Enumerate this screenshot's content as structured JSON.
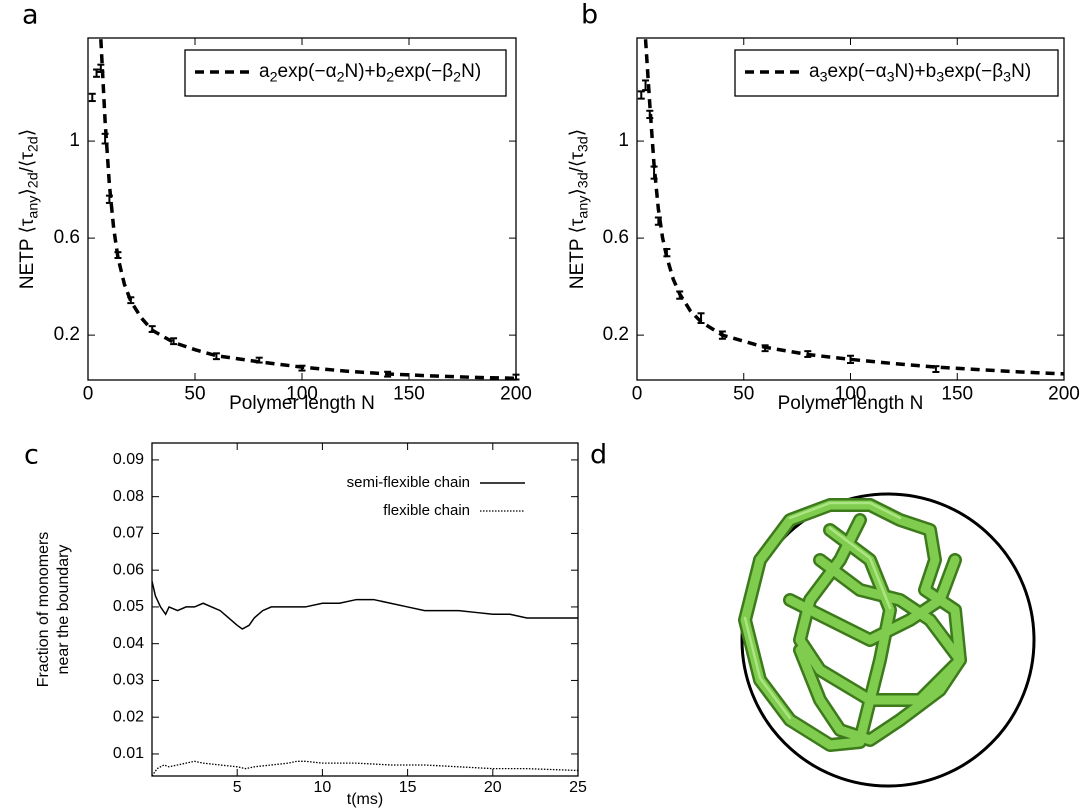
{
  "chart_data": [
    {
      "type": "line",
      "panel_label": "a",
      "xlabel": "Polymer length N",
      "ylabel": [
        "NETP ⟨τ",
        "any",
        "⟩",
        "2d",
        "/⟨τ",
        "2d",
        "⟩"
      ],
      "xlim": [
        0,
        200
      ],
      "ylim": [
        0.015,
        1.425
      ],
      "xticks": [
        0,
        50,
        100,
        150,
        200
      ],
      "yticks": [
        0.2,
        0.6,
        1
      ],
      "legend_frame": true,
      "series": [
        {
          "style": "errorbar",
          "color": "#000000",
          "x": [
            2,
            4,
            6,
            8,
            10,
            14,
            20,
            30,
            40,
            60,
            80,
            100,
            140,
            200
          ],
          "values": [
            1.18,
            1.28,
            1.3,
            1.01,
            0.76,
            0.53,
            0.344,
            0.225,
            0.175,
            0.113,
            0.097,
            0.064,
            0.039,
            0.027
          ],
          "errors": [
            0.015,
            0.015,
            0.015,
            0.02,
            0.015,
            0.012,
            0.012,
            0.012,
            0.012,
            0.012,
            0.01,
            0.01,
            0.01,
            0.01
          ]
        },
        {
          "name": [
            "a",
            "2",
            "exp(−α",
            "2",
            "N)+b",
            "2",
            "exp(−β",
            "2",
            "N)"
          ],
          "style": "dashed",
          "color": "#000000",
          "x": [
            6,
            8,
            10,
            12,
            14,
            17,
            20,
            25,
            30,
            40,
            50,
            60,
            80,
            100,
            120,
            140,
            160,
            180,
            200
          ],
          "values": [
            1.42,
            1.08,
            0.82,
            0.64,
            0.52,
            0.41,
            0.34,
            0.27,
            0.22,
            0.17,
            0.14,
            0.115,
            0.09,
            0.068,
            0.052,
            0.04,
            0.032,
            0.026,
            0.022
          ]
        }
      ]
    },
    {
      "type": "line",
      "panel_label": "b",
      "xlabel": "Polymer length N",
      "ylabel": [
        "NETP ⟨τ",
        "any",
        "⟩",
        "3d",
        "/⟨τ",
        "3d",
        "⟩"
      ],
      "xlim": [
        0,
        200
      ],
      "ylim": [
        0.015,
        1.425
      ],
      "xticks": [
        0,
        50,
        100,
        150,
        200
      ],
      "yticks": [
        0.2,
        0.6,
        1
      ],
      "legend_frame": true,
      "series": [
        {
          "style": "errorbar",
          "color": "#000000",
          "x": [
            2,
            4,
            6,
            8,
            10,
            14,
            20,
            30,
            40,
            60,
            80,
            100,
            140
          ],
          "values": [
            1.19,
            1.23,
            1.11,
            0.87,
            0.67,
            0.54,
            0.365,
            0.27,
            0.2,
            0.146,
            0.122,
            0.1,
            0.06
          ],
          "errors": [
            0.015,
            0.02,
            0.015,
            0.025,
            0.015,
            0.015,
            0.015,
            0.02,
            0.015,
            0.012,
            0.012,
            0.015,
            0.012
          ]
        },
        {
          "name": [
            "a",
            "3",
            "exp(−α",
            "3",
            "N)+b",
            "3",
            "exp(−β",
            "3",
            "N)"
          ],
          "style": "dashed",
          "color": "#000000",
          "x": [
            4,
            6,
            8,
            10,
            12,
            14,
            17,
            20,
            25,
            30,
            40,
            50,
            60,
            80,
            100,
            120,
            140,
            160,
            180,
            200
          ],
          "values": [
            1.42,
            1.15,
            0.9,
            0.72,
            0.6,
            0.52,
            0.43,
            0.37,
            0.3,
            0.255,
            0.2,
            0.175,
            0.15,
            0.12,
            0.1,
            0.083,
            0.068,
            0.058,
            0.048,
            0.04
          ]
        }
      ]
    },
    {
      "type": "line",
      "panel_label": "c",
      "xlabel": "t(ms)",
      "ylabel": [
        "Fraction of monomers",
        "near the  boundary"
      ],
      "xlim": [
        0,
        25
      ],
      "ylim": [
        0.004,
        0.0946
      ],
      "xticks": [
        5,
        10,
        15,
        20,
        25
      ],
      "yticks": [
        0.01,
        0.02,
        0.03,
        0.04,
        0.05,
        0.06,
        0.07,
        0.08,
        0.09
      ],
      "legend_frame": false,
      "series": [
        {
          "name": [
            "semi-flexible chain"
          ],
          "style": "solid",
          "color": "#000000",
          "x": [
            0,
            0.2,
            0.5,
            0.8,
            1,
            1.5,
            2,
            2.5,
            3,
            3.5,
            4,
            4.5,
            5,
            5.3,
            5.7,
            6,
            6.5,
            7,
            8,
            9,
            10,
            11,
            12,
            13,
            14,
            15,
            16,
            17,
            18,
            19,
            20,
            21,
            22,
            23,
            24,
            25
          ],
          "values": [
            0.057,
            0.053,
            0.05,
            0.048,
            0.05,
            0.049,
            0.05,
            0.05,
            0.051,
            0.05,
            0.049,
            0.047,
            0.045,
            0.044,
            0.045,
            0.047,
            0.049,
            0.05,
            0.05,
            0.05,
            0.051,
            0.051,
            0.052,
            0.052,
            0.051,
            0.05,
            0.049,
            0.049,
            0.049,
            0.0485,
            0.048,
            0.048,
            0.047,
            0.047,
            0.047,
            0.047
          ]
        },
        {
          "name": [
            "flexible chain"
          ],
          "style": "dotted",
          "color": "#000000",
          "x": [
            0,
            0.3,
            0.7,
            1,
            1.5,
            2,
            2.5,
            3,
            4,
            5,
            5.5,
            6,
            7,
            8,
            8.5,
            9,
            10,
            12,
            14,
            16,
            18,
            20,
            22,
            25
          ],
          "values": [
            0.004,
            0.006,
            0.007,
            0.0065,
            0.007,
            0.0075,
            0.008,
            0.0075,
            0.007,
            0.0065,
            0.006,
            0.0065,
            0.007,
            0.0075,
            0.008,
            0.008,
            0.0075,
            0.0075,
            0.007,
            0.007,
            0.0065,
            0.006,
            0.006,
            0.0055
          ]
        }
      ]
    }
  ],
  "panel_d": {
    "panel_label": "d"
  }
}
